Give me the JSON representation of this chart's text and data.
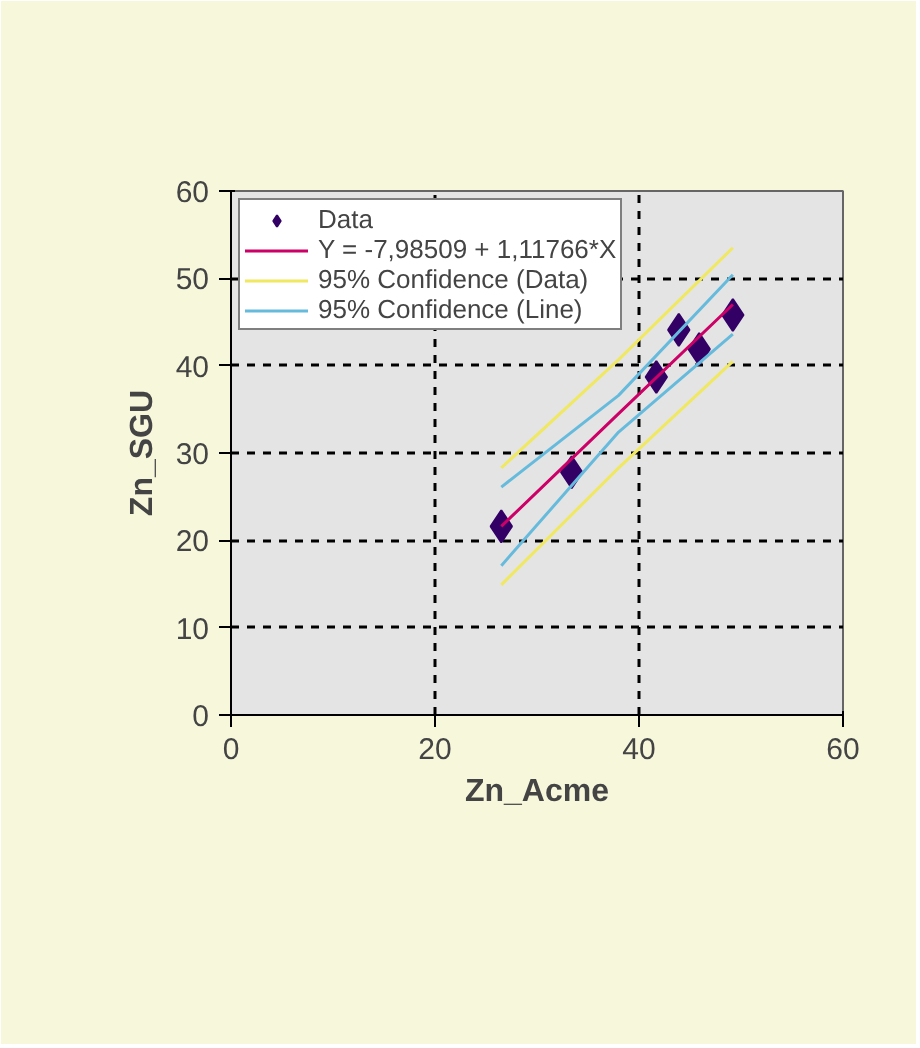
{
  "chart_data": {
    "type": "scatter",
    "xlabel": "Zn_Acme",
    "ylabel": "Zn_SGU",
    "xlim": [
      0,
      60
    ],
    "xticks": [
      0,
      20,
      40,
      60
    ],
    "ylim": [
      0,
      60
    ],
    "yticks": [
      0,
      10,
      20,
      30,
      40,
      50,
      60
    ],
    "grid": true,
    "legend": "top left",
    "series": [
      {
        "name": "Data",
        "marker": "diamond",
        "color": "#330066",
        "x": [
          26.5,
          33.4,
          41.7,
          43.9,
          45.9,
          49.2
        ],
        "values": [
          21.6,
          27.8,
          38.7,
          44.1,
          41.9,
          45.8
        ]
      },
      {
        "name": "Y = -7,98509 + 1,11766*X",
        "type": "line",
        "marker": "none",
        "line_style": "solid",
        "color": "#cc0066",
        "x": [
          26.5,
          38,
          49.2
        ],
        "values": [
          21.6,
          34.5,
          47.0
        ]
      },
      {
        "name": "95% Confidence (Data)",
        "type": "line",
        "marker": "none",
        "line_style": "solid",
        "color": "#f0e860",
        "x": [
          26.5,
          38,
          49.2
        ],
        "values": [
          28.3,
          40.7,
          53.5
        ]
      },
      {
        "type": "line",
        "marker": "none",
        "line_style": "solid",
        "color": "#f0e860",
        "x": [
          26.5,
          38,
          49.2
        ],
        "values": [
          14.9,
          28.3,
          40.5
        ]
      },
      {
        "name": "95% Confidence (Line)",
        "type": "line",
        "marker": "none",
        "line_style": "solid",
        "color": "#66bbdd",
        "x": [
          26.5,
          38,
          49.2
        ],
        "values": [
          26.1,
          36.6,
          50.4
        ]
      },
      {
        "type": "line",
        "marker": "none",
        "line_style": "solid",
        "color": "#66bbdd",
        "x": [
          26.5,
          38,
          49.2
        ],
        "values": [
          17.1,
          32.4,
          43.6
        ]
      }
    ]
  }
}
